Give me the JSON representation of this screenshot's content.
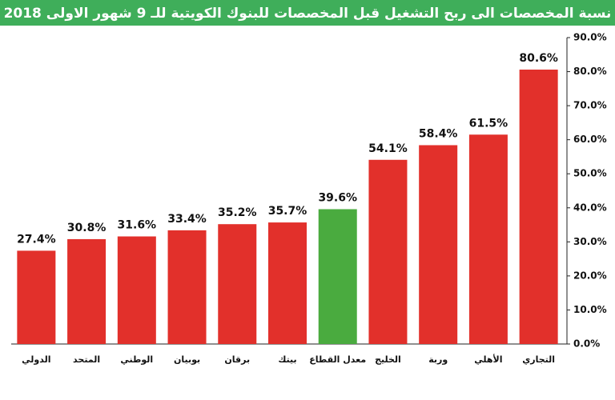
{
  "chart_data": {
    "type": "bar",
    "title": "نسبة المخصصات الى ربح التشغيل قبل المخصصات للبنوك الكويتية للـ 9 شهور الاولى 2018",
    "categories": [
      "الدولي",
      "المتحد",
      "الوطني",
      "بوبيان",
      "برقان",
      "بيتك",
      "معدل القطاع",
      "الخليج",
      "وربة",
      "الأهلي",
      "التجاري"
    ],
    "values": [
      27.4,
      30.8,
      31.6,
      33.4,
      35.2,
      35.7,
      39.6,
      54.1,
      58.4,
      61.5,
      80.6
    ],
    "value_labels": [
      "27.4%",
      "30.8%",
      "31.6%",
      "33.4%",
      "35.2%",
      "35.7%",
      "39.6%",
      "54.1%",
      "58.4%",
      "61.5%",
      "80.6%"
    ],
    "colors": [
      "#e2302b",
      "#e2302b",
      "#e2302b",
      "#e2302b",
      "#e2302b",
      "#e2302b",
      "#4aab3f",
      "#e2302b",
      "#e2302b",
      "#e2302b",
      "#e2302b"
    ],
    "ylim": [
      0,
      90
    ],
    "yticks": [
      {
        "value": 0,
        "label": "0.0%"
      },
      {
        "value": 10,
        "label": "10.0%"
      },
      {
        "value": 20,
        "label": "20.0%"
      },
      {
        "value": 30,
        "label": "30.0%"
      },
      {
        "value": 40,
        "label": "40.0%"
      },
      {
        "value": 50,
        "label": "50.0%"
      },
      {
        "value": 60,
        "label": "60.0%"
      },
      {
        "value": 70,
        "label": "70.0%"
      },
      {
        "value": 80,
        "label": "80.0%"
      },
      {
        "value": 90,
        "label": "90.0%"
      }
    ],
    "y_axis_side": "right",
    "grid": false
  }
}
